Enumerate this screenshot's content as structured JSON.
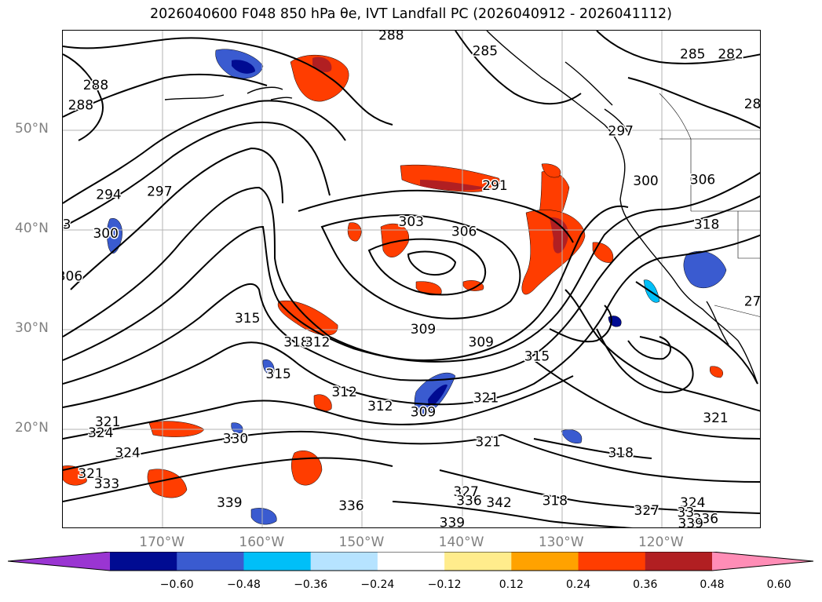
{
  "title": "2026040600 F048 850 hPa θe, IVT Landfall PC (2026040912 - 2026041112)",
  "map": {
    "lat_labels": [
      "50°N",
      "40°N",
      "30°N",
      "20°N"
    ],
    "lon_labels": [
      "170°W",
      "160°W",
      "150°W",
      "140°W",
      "130°W",
      "120°W"
    ],
    "lat_values": [
      50,
      40,
      30,
      20
    ],
    "lon_values": [
      -170,
      -160,
      -150,
      -140,
      -130,
      -120
    ],
    "extent": {
      "lon_min": -180,
      "lon_max": -110,
      "lat_min": 10,
      "lat_max": 60
    },
    "gridlines": true,
    "contour_color": "#000000",
    "contour_labels": [
      {
        "text": "288",
        "lon": -147.1,
        "lat": 59.5
      },
      {
        "text": "285",
        "lon": -137.7,
        "lat": 57.9
      },
      {
        "text": "285",
        "lon": -116.9,
        "lat": 57.6
      },
      {
        "text": "282",
        "lon": -113.1,
        "lat": 57.6
      },
      {
        "text": "288",
        "lon": -176.7,
        "lat": 54.5
      },
      {
        "text": "288",
        "lon": -178.2,
        "lat": 52.5
      },
      {
        "text": "28",
        "lon": -110.9,
        "lat": 52.6
      },
      {
        "text": "297",
        "lon": -124.1,
        "lat": 49.9
      },
      {
        "text": "294",
        "lon": -175.4,
        "lat": 43.5
      },
      {
        "text": "297",
        "lon": -170.3,
        "lat": 43.8
      },
      {
        "text": "291",
        "lon": -136.7,
        "lat": 44.4
      },
      {
        "text": "300",
        "lon": -121.6,
        "lat": 44.9
      },
      {
        "text": "306",
        "lon": -115.9,
        "lat": 45.0
      },
      {
        "text": "303",
        "lon": -145.1,
        "lat": 40.8
      },
      {
        "text": "306",
        "lon": -139.8,
        "lat": 39.8
      },
      {
        "text": "318",
        "lon": -115.5,
        "lat": 40.5
      },
      {
        "text": "300",
        "lon": -175.7,
        "lat": 39.6
      },
      {
        "text": "306",
        "lon": -179.3,
        "lat": 35.3
      },
      {
        "text": "315",
        "lon": -161.5,
        "lat": 31.1
      },
      {
        "text": "309",
        "lon": -143.9,
        "lat": 30.0
      },
      {
        "text": "318",
        "lon": -156.6,
        "lat": 28.7
      },
      {
        "text": "312",
        "lon": -154.5,
        "lat": 28.7
      },
      {
        "text": "309",
        "lon": -138.1,
        "lat": 28.7
      },
      {
        "text": "315",
        "lon": -132.5,
        "lat": 27.3
      },
      {
        "text": "315",
        "lon": -158.4,
        "lat": 25.5
      },
      {
        "text": "312",
        "lon": -151.8,
        "lat": 23.7
      },
      {
        "text": "312",
        "lon": -148.2,
        "lat": 22.3
      },
      {
        "text": "309",
        "lon": -143.9,
        "lat": 21.7
      },
      {
        "text": "321",
        "lon": -137.6,
        "lat": 23.1
      },
      {
        "text": "321",
        "lon": -175.5,
        "lat": 20.7
      },
      {
        "text": "324",
        "lon": -176.2,
        "lat": 19.6
      },
      {
        "text": "330",
        "lon": -162.7,
        "lat": 19.0
      },
      {
        "text": "321",
        "lon": -114.6,
        "lat": 21.1
      },
      {
        "text": "321",
        "lon": -137.4,
        "lat": 18.7
      },
      {
        "text": "324",
        "lon": -173.5,
        "lat": 17.6
      },
      {
        "text": "318",
        "lon": -124.1,
        "lat": 17.6
      },
      {
        "text": "321",
        "lon": -177.2,
        "lat": 15.5
      },
      {
        "text": "333",
        "lon": -175.6,
        "lat": 14.5
      },
      {
        "text": "327",
        "lon": -139.6,
        "lat": 13.7
      },
      {
        "text": "336",
        "lon": -139.3,
        "lat": 12.8
      },
      {
        "text": "342",
        "lon": -136.3,
        "lat": 12.6
      },
      {
        "text": "318",
        "lon": -130.7,
        "lat": 12.8
      },
      {
        "text": "324",
        "lon": -116.9,
        "lat": 12.6
      },
      {
        "text": "339",
        "lon": -163.3,
        "lat": 12.6
      },
      {
        "text": "336",
        "lon": -151.1,
        "lat": 12.3
      },
      {
        "text": "327",
        "lon": -121.5,
        "lat": 11.8
      },
      {
        "text": "33",
        "lon": -117.6,
        "lat": 11.6
      },
      {
        "text": "336",
        "lon": -115.6,
        "lat": 11.0
      },
      {
        "text": "339",
        "lon": -117.1,
        "lat": 10.5
      },
      {
        "text": "339",
        "lon": -141.0,
        "lat": 10.6
      },
      {
        "text": "27",
        "lon": -110.9,
        "lat": 32.8
      },
      {
        "text": "3",
        "lon": -179.6,
        "lat": 40.5
      }
    ]
  },
  "colorbar": {
    "labels": [
      "−0.60",
      "−0.48",
      "−0.36",
      "−0.24",
      "−0.12",
      "0.12",
      "0.24",
      "0.36",
      "0.48",
      "0.60"
    ],
    "extend": "both",
    "colors": [
      "#9a35d2",
      "#000b92",
      "#3a5bd0",
      "#00bff8",
      "#b6e3ff",
      "#ffffff",
      "#ffec8c",
      "#ffa200",
      "#ff3d00",
      "#b11f22",
      "#ff8db6"
    ]
  }
}
